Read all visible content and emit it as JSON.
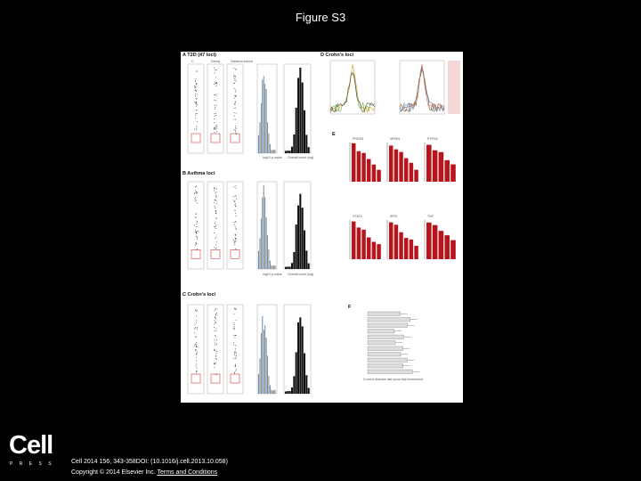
{
  "slide": {
    "title": "Figure S3"
  },
  "figure": {
    "panels": {
      "a": "A  T2D (47 loci)",
      "b": "B  Asthma loci",
      "c": "C  Crohn's loci",
      "d": "D  Crohn's loci",
      "e": "E",
      "f": "F"
    },
    "box_group_labels": [
      "C",
      "Decoy",
      "Distance-based"
    ],
    "bar_titles_top": [
      "PRDM1",
      "NFKB1",
      "PTPN2"
    ],
    "bar_titles_bottom": [
      "STAT4",
      "IRF5",
      "TNF"
    ],
    "hist_xlabel": "log10 p-value",
    "density_xlabel": "Overall count (log)",
    "f_xlabel": "Crohn's disease risk locus fold enrichment",
    "f_rows": [
      "hNat",
      "hNK",
      "hTc",
      "hTh",
      "hMono",
      "hTreg",
      "hBcell",
      "hDC",
      "hTsm",
      "hNK2",
      "all"
    ],
    "colors": {
      "bar_red": "#b8141c",
      "hist_blue": "#5b8db8",
      "hist_grey": "#8a8a8a",
      "box_red": "#d43a3a"
    }
  },
  "footer": {
    "logo_word": "Cell",
    "logo_sub": "PRESS",
    "citation": "Cell 2014 156, 343-358DOI: (10.1016/j.cell.2013.10.058)",
    "copyright_prefix": "Copyright © 2014 Elsevier Inc.",
    "terms_link": "Terms and Conditions"
  }
}
